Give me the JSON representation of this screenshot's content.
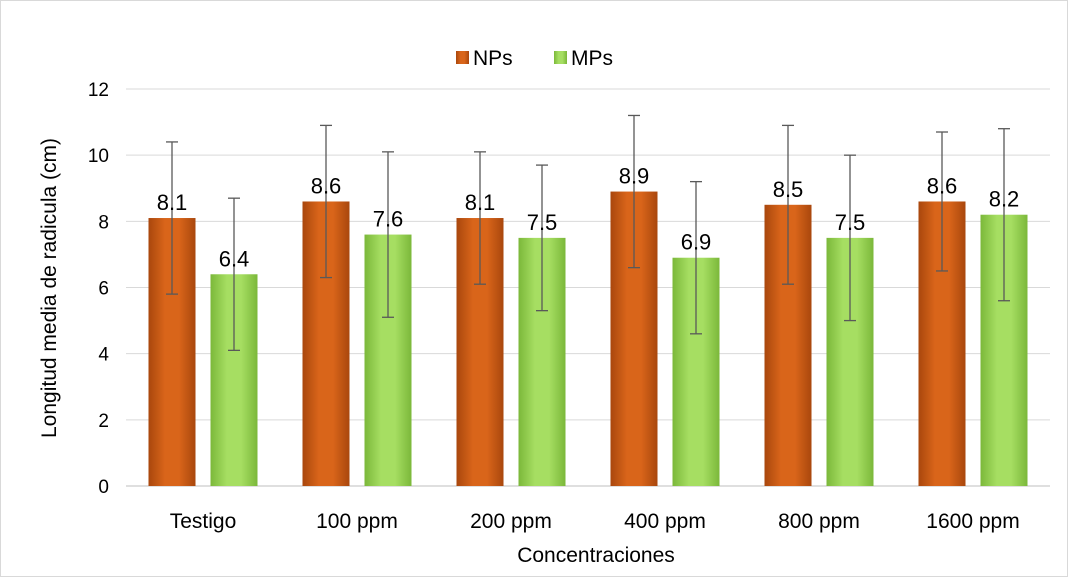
{
  "chart_data": {
    "type": "bar",
    "categories": [
      "Testigo",
      "100 ppm",
      "200 ppm",
      "400 ppm",
      "800 ppm",
      "1600 ppm"
    ],
    "series": [
      {
        "name": "NPs",
        "color": "#c55a11",
        "values": [
          8.1,
          8.6,
          8.1,
          8.9,
          8.5,
          8.6
        ],
        "labels": [
          "8.1",
          "8.6",
          "8.1",
          "8.9",
          "8.5",
          "8.6"
        ],
        "error_low": [
          5.8,
          6.3,
          6.1,
          6.6,
          6.1,
          6.5
        ],
        "error_high": [
          10.4,
          10.9,
          10.1,
          11.2,
          10.9,
          10.7
        ]
      },
      {
        "name": "MPs",
        "color": "#92d050",
        "values": [
          6.4,
          7.6,
          7.5,
          6.9,
          7.5,
          8.2
        ],
        "labels": [
          "6.4",
          "7.6",
          "7.5",
          "6.9",
          "7.5",
          "8.2"
        ],
        "error_low": [
          4.1,
          5.1,
          5.3,
          4.6,
          5.0,
          5.6
        ],
        "error_high": [
          8.7,
          10.1,
          9.7,
          9.2,
          10.0,
          10.8
        ]
      }
    ],
    "xlabel": "Concentraciones",
    "ylabel": "Longitud media de radicula (cm)",
    "ylim": [
      0,
      12
    ],
    "yticks": [
      "0",
      "2",
      "4",
      "6",
      "8",
      "10",
      "12"
    ],
    "grid": true,
    "legend": "top-center"
  }
}
